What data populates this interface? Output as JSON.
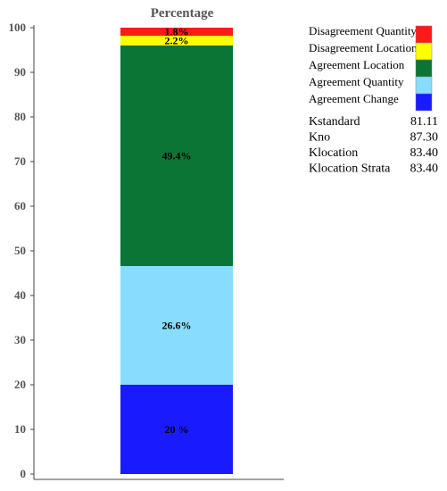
{
  "chart_data": {
    "type": "bar",
    "title": "Percentage",
    "ylim": [
      0,
      100
    ],
    "yticks": [
      0,
      10,
      20,
      30,
      40,
      50,
      60,
      70,
      80,
      90,
      100
    ],
    "grid": false,
    "legend_position": "top-right",
    "stacked": true,
    "series": [
      {
        "name": "Agreement Change",
        "value": 20,
        "label": "20 %",
        "color": "#1a1aff"
      },
      {
        "name": "Agreement Quantity",
        "value": 26.6,
        "label": "26.6%",
        "color": "#88ddff"
      },
      {
        "name": "Agreement Location",
        "value": 49.4,
        "label": "49.4%",
        "color": "#0a7535"
      },
      {
        "name": "Disagreement Location",
        "value": 2.2,
        "label": "2.2%",
        "color": "#ffff00"
      },
      {
        "name": "Disagreement Quantity",
        "value": 1.8,
        "label": "1.8%",
        "color": "#ff1a1a"
      }
    ],
    "legend_order": [
      "Disagreement Quantity",
      "Disagreement Location",
      "Agreement Location",
      "Agreement Quantity",
      "Agreement Change"
    ],
    "kappa_stats": [
      {
        "name": "Kstandard",
        "value": "81.11"
      },
      {
        "name": "Kno",
        "value": "87.30"
      },
      {
        "name": "Klocation",
        "value": "83.40"
      },
      {
        "name": "Klocation Strata",
        "value": "83.40"
      }
    ]
  }
}
